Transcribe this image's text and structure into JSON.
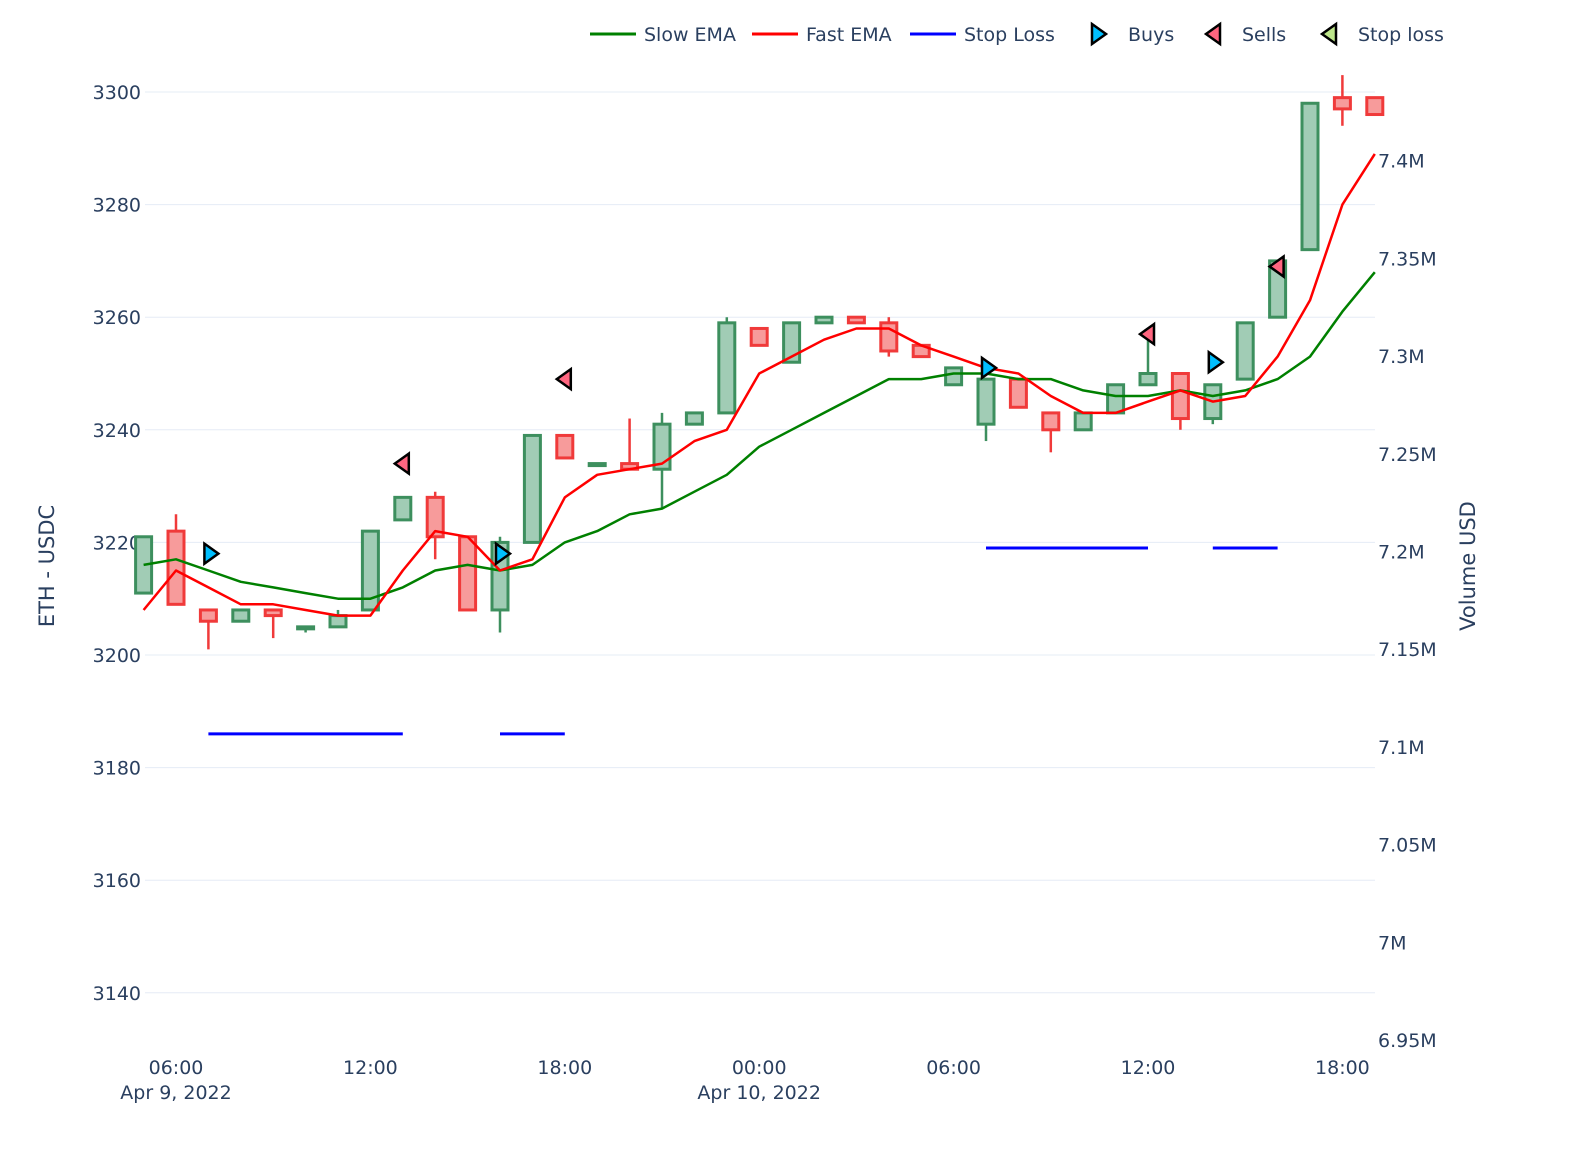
{
  "chart_data": {
    "type": "candlestick",
    "y_axis_label": "ETH - USDC",
    "y2_axis_label": "Volume USD",
    "y_ticks": [
      3140,
      3160,
      3180,
      3200,
      3220,
      3240,
      3260,
      3280,
      3300
    ],
    "ylim": [
      3134,
      3308
    ],
    "y2_ticks": [
      {
        "value": 6950000,
        "label": "6.95M"
      },
      {
        "value": 7000000,
        "label": "7M"
      },
      {
        "value": 7050000,
        "label": "7.05M"
      },
      {
        "value": 7100000,
        "label": "7.1M"
      },
      {
        "value": 7150000,
        "label": "7.15M"
      },
      {
        "value": 7200000,
        "label": "7.2M"
      },
      {
        "value": 7250000,
        "label": "7.25M"
      },
      {
        "value": 7300000,
        "label": "7.3M"
      },
      {
        "value": 7350000,
        "label": "7.35M"
      },
      {
        "value": 7400000,
        "label": "7.4M"
      }
    ],
    "y2lim": [
      6950000,
      7440000
    ],
    "x_ticks": [
      {
        "hour": 6,
        "line1": "06:00",
        "line2": "Apr 9, 2022"
      },
      {
        "hour": 12,
        "line1": "12:00",
        "line2": ""
      },
      {
        "hour": 18,
        "line1": "18:00",
        "line2": ""
      },
      {
        "hour": 24,
        "line1": "00:00",
        "line2": "Apr 10, 2022"
      },
      {
        "hour": 30,
        "line1": "06:00",
        "line2": ""
      },
      {
        "hour": 36,
        "line1": "12:00",
        "line2": ""
      },
      {
        "hour": 42,
        "line1": "18:00",
        "line2": ""
      }
    ],
    "x_unit": "hours since Apr 9, 2022 00:00",
    "xlim": [
      5,
      43
    ],
    "legend": [
      {
        "name": "Slow EMA",
        "kind": "line",
        "color": "#008000"
      },
      {
        "name": "Fast EMA",
        "kind": "line",
        "color": "#ff0000"
      },
      {
        "name": "Stop Loss",
        "kind": "line",
        "color": "#0000ff"
      },
      {
        "name": "Buys",
        "kind": "triangle-right",
        "color": "#00bfff"
      },
      {
        "name": "Sells",
        "kind": "triangle-left",
        "color": "#ff6680"
      },
      {
        "name": "Stop loss",
        "kind": "triangle-left",
        "color": "#bde68a"
      }
    ],
    "candles": [
      {
        "t": 5,
        "o": 3211,
        "h": 3221,
        "l": 3211,
        "c": 3221
      },
      {
        "t": 6,
        "o": 3222,
        "h": 3225,
        "l": 3209,
        "c": 3209
      },
      {
        "t": 7,
        "o": 3208,
        "h": 3208,
        "l": 3201,
        "c": 3206
      },
      {
        "t": 8,
        "o": 3206,
        "h": 3208,
        "l": 3206,
        "c": 3208
      },
      {
        "t": 9,
        "o": 3208,
        "h": 3208,
        "l": 3203,
        "c": 3207
      },
      {
        "t": 10,
        "o": 3205,
        "h": 3205,
        "l": 3204,
        "c": 3205
      },
      {
        "t": 11,
        "o": 3205,
        "h": 3208,
        "l": 3205,
        "c": 3207
      },
      {
        "t": 12,
        "o": 3208,
        "h": 3222,
        "l": 3208,
        "c": 3222
      },
      {
        "t": 13,
        "o": 3224,
        "h": 3228,
        "l": 3224,
        "c": 3228
      },
      {
        "t": 14,
        "o": 3228,
        "h": 3229,
        "l": 3217,
        "c": 3221
      },
      {
        "t": 15,
        "o": 3221,
        "h": 3221,
        "l": 3208,
        "c": 3208
      },
      {
        "t": 16,
        "o": 3208,
        "h": 3221,
        "l": 3204,
        "c": 3220
      },
      {
        "t": 17,
        "o": 3220,
        "h": 3239,
        "l": 3220,
        "c": 3239
      },
      {
        "t": 18,
        "o": 3239,
        "h": 3239,
        "l": 3235,
        "c": 3235
      },
      {
        "t": 19,
        "o": 3234,
        "h": 3234,
        "l": 3234,
        "c": 3234
      },
      {
        "t": 20,
        "o": 3234,
        "h": 3242,
        "l": 3233,
        "c": 3233
      },
      {
        "t": 21,
        "o": 3233,
        "h": 3243,
        "l": 3226,
        "c": 3241
      },
      {
        "t": 22,
        "o": 3241,
        "h": 3243,
        "l": 3241,
        "c": 3243
      },
      {
        "t": 23,
        "o": 3243,
        "h": 3260,
        "l": 3243,
        "c": 3259
      },
      {
        "t": 24,
        "o": 3258,
        "h": 3258,
        "l": 3255,
        "c": 3255
      },
      {
        "t": 25,
        "o": 3252,
        "h": 3259,
        "l": 3252,
        "c": 3259
      },
      {
        "t": 26,
        "o": 3259,
        "h": 3260,
        "l": 3259,
        "c": 3260
      },
      {
        "t": 27,
        "o": 3260,
        "h": 3260,
        "l": 3259,
        "c": 3259
      },
      {
        "t": 28,
        "o": 3259,
        "h": 3260,
        "l": 3253,
        "c": 3254
      },
      {
        "t": 29,
        "o": 3255,
        "h": 3255,
        "l": 3253,
        "c": 3253
      },
      {
        "t": 30,
        "o": 3248,
        "h": 3251,
        "l": 3248,
        "c": 3251
      },
      {
        "t": 31,
        "o": 3241,
        "h": 3249,
        "l": 3238,
        "c": 3249
      },
      {
        "t": 32,
        "o": 3249,
        "h": 3249,
        "l": 3244,
        "c": 3244
      },
      {
        "t": 33,
        "o": 3243,
        "h": 3243,
        "l": 3236,
        "c": 3240
      },
      {
        "t": 34,
        "o": 3240,
        "h": 3243,
        "l": 3240,
        "c": 3243
      },
      {
        "t": 35,
        "o": 3243,
        "h": 3248,
        "l": 3243,
        "c": 3248
      },
      {
        "t": 36,
        "o": 3248,
        "h": 3256,
        "l": 3248,
        "c": 3250
      },
      {
        "t": 37,
        "o": 3250,
        "h": 3250,
        "l": 3240,
        "c": 3242
      },
      {
        "t": 38,
        "o": 3242,
        "h": 3248,
        "l": 3241,
        "c": 3248
      },
      {
        "t": 39,
        "o": 3249,
        "h": 3259,
        "l": 3249,
        "c": 3259
      },
      {
        "t": 40,
        "o": 3260,
        "h": 3270,
        "l": 3260,
        "c": 3270
      },
      {
        "t": 41,
        "o": 3272,
        "h": 3298,
        "l": 3272,
        "c": 3298
      },
      {
        "t": 42,
        "o": 3299,
        "h": 3303,
        "l": 3294,
        "c": 3297
      },
      {
        "t": 43,
        "o": 3299,
        "h": 3299,
        "l": 3296,
        "c": 3296
      }
    ],
    "series": [
      {
        "name": "Slow EMA",
        "x": [
          5,
          6,
          7,
          8,
          9,
          10,
          11,
          12,
          13,
          14,
          15,
          16,
          17,
          18,
          19,
          20,
          21,
          22,
          23,
          24,
          25,
          26,
          27,
          28,
          29,
          30,
          31,
          32,
          33,
          34,
          35,
          36,
          37,
          38,
          39,
          40,
          41,
          42,
          43
        ],
        "y": [
          3216,
          3217,
          3215,
          3213,
          3212,
          3211,
          3210,
          3210,
          3212,
          3215,
          3216,
          3215,
          3216,
          3220,
          3222,
          3225,
          3226,
          3229,
          3232,
          3237,
          3240,
          3243,
          3246,
          3249,
          3249,
          3250,
          3250,
          3249,
          3249,
          3247,
          3246,
          3246,
          3247,
          3246,
          3247,
          3249,
          3253,
          3261,
          3268
        ]
      },
      {
        "name": "Fast EMA",
        "x": [
          5,
          6,
          7,
          8,
          9,
          10,
          11,
          12,
          13,
          14,
          15,
          16,
          17,
          18,
          19,
          20,
          21,
          22,
          23,
          24,
          25,
          26,
          27,
          28,
          29,
          30,
          31,
          32,
          33,
          34,
          35,
          36,
          37,
          38,
          39,
          40,
          41,
          42,
          43
        ],
        "y": [
          3208,
          3215,
          3212,
          3209,
          3209,
          3208,
          3207,
          3207,
          3215,
          3222,
          3221,
          3215,
          3217,
          3228,
          3232,
          3233,
          3234,
          3238,
          3240,
          3250,
          3253,
          3256,
          3258,
          3258,
          3255,
          3253,
          3251,
          3250,
          3246,
          3243,
          3243,
          3245,
          3247,
          3245,
          3246,
          3253,
          3263,
          3280,
          3289
        ]
      },
      {
        "name": "Stop Loss",
        "segments": [
          {
            "x": [
              7,
              13
            ],
            "y": 3186
          },
          {
            "x": [
              16,
              18
            ],
            "y": 3186
          },
          {
            "x": [
              31,
              36
            ],
            "y": 3219
          },
          {
            "x": [
              38,
              40
            ],
            "y": 3219
          }
        ]
      }
    ],
    "buys": [
      {
        "t": 7,
        "price": 3218
      },
      {
        "t": 16,
        "price": 3218
      },
      {
        "t": 31,
        "price": 3251
      },
      {
        "t": 38,
        "price": 3252
      }
    ],
    "sells": [
      {
        "t": 13,
        "price": 3234
      },
      {
        "t": 18,
        "price": 3249
      },
      {
        "t": 36,
        "price": 3257
      },
      {
        "t": 40,
        "price": 3269
      }
    ],
    "colors": {
      "up_fill": "#a1ccb5",
      "up_line": "#3d8f5e",
      "down_fill": "#f79b9b",
      "down_line": "#f03a3a",
      "slow_ema": "#008000",
      "fast_ema": "#ff0000",
      "stop_loss": "#0000ff",
      "buy_marker": "#00bfff",
      "sell_marker": "#ff6680",
      "stoploss_marker": "#bde68a",
      "grid": "#e5ecf6",
      "text": "#2a3f5f"
    }
  }
}
